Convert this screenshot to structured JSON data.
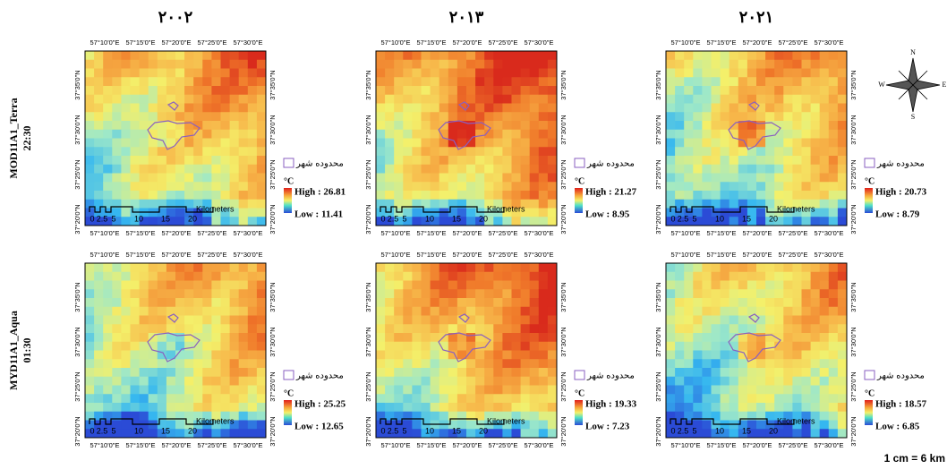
{
  "column_titles": [
    "۲۰۰۲",
    "۲۰۱۳",
    "۲۰۲۱"
  ],
  "row_labels": [
    {
      "sensor": "MOD11A1_Terra",
      "time": "22:30"
    },
    {
      "sensor": "MYD11A1_Aqua",
      "time": "01:30"
    }
  ],
  "lon_labels": [
    "57°10'0\"E",
    "57°15'0\"E",
    "57°20'0\"E",
    "57°25'0\"E",
    "57°30'0\"E"
  ],
  "lat_labels": [
    "37°35'0\"N",
    "37°30'0\"N",
    "37°25'0\"N",
    "37°20'0\"N"
  ],
  "scale_bar": {
    "ticks": [
      "0",
      "2.5",
      "5",
      "10",
      "15",
      "20"
    ],
    "unit": "Kilometers"
  },
  "legend": {
    "boundary": "محدوده شهر",
    "unit": "°C"
  },
  "panels": [
    {
      "high": "High : 26.81",
      "low": "Low : 11.41"
    },
    {
      "high": "High : 21.27",
      "low": "Low : 8.95"
    },
    {
      "high": "High : 20.73",
      "low": "Low : 8.79"
    },
    {
      "high": "High : 25.25",
      "low": "Low : 12.65"
    },
    {
      "high": "High : 19.33",
      "low": "Low : 7.23"
    },
    {
      "high": "High : 18.57",
      "low": "Low : 6.85"
    }
  ],
  "compass": {
    "n": "N",
    "s": "S",
    "e": "E",
    "w": "W"
  },
  "scale_note": "1 cm = 6 km"
}
